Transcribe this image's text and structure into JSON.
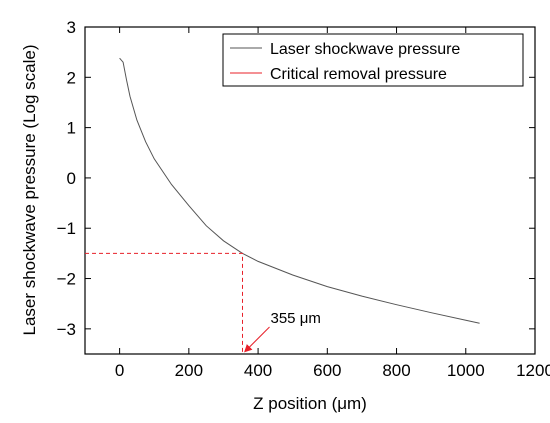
{
  "chart_data": {
    "type": "line",
    "xlabel": "Z position (μm)",
    "ylabel": "Laser shockwave pressure (Log scale)",
    "xlim": [
      -100,
      1200
    ],
    "ylim": [
      -3.5,
      3
    ],
    "x_ticks": [
      0,
      200,
      400,
      600,
      800,
      1000,
      1200
    ],
    "y_ticks": [
      -3,
      -2,
      -1,
      0,
      1,
      2,
      3
    ],
    "grid": false,
    "legend_position": "top-right",
    "series": [
      {
        "name": "Laser shockwave pressure",
        "color": "#555555",
        "style": "solid",
        "x": [
          0,
          10,
          20,
          30,
          50,
          75,
          100,
          150,
          200,
          250,
          300,
          355,
          400,
          500,
          600,
          700,
          800,
          900,
          1000,
          1040
        ],
        "y": [
          2.38,
          2.3,
          1.95,
          1.62,
          1.15,
          0.72,
          0.38,
          -0.13,
          -0.55,
          -0.95,
          -1.25,
          -1.5,
          -1.66,
          -1.93,
          -2.16,
          -2.35,
          -2.52,
          -2.68,
          -2.83,
          -2.89
        ]
      },
      {
        "name": "Critical removal pressure",
        "color": "#e8202a",
        "style": "dashed",
        "x": [
          -100,
          355,
          355
        ],
        "y": [
          -1.5,
          -1.5,
          -3.5
        ]
      }
    ],
    "annotations": [
      {
        "text": "355 μm",
        "x": 355,
        "y": -3.5
      }
    ]
  }
}
